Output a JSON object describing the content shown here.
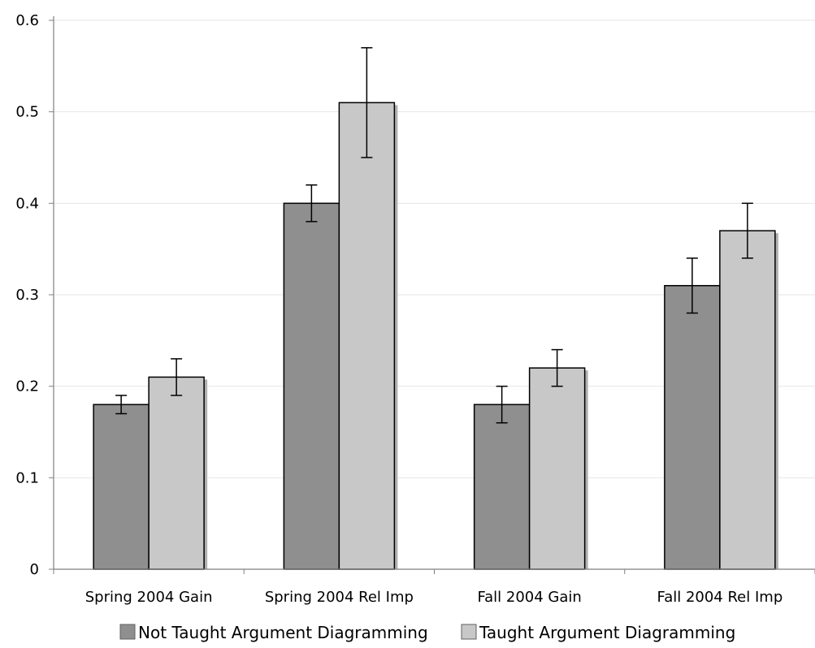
{
  "chart_data": {
    "type": "bar",
    "title": "",
    "xlabel": "",
    "ylabel": "",
    "categories": [
      "Spring 2004 Gain",
      "Spring 2004 Rel Imp",
      "Fall 2004 Gain",
      "Fall 2004 Rel Imp"
    ],
    "series": [
      {
        "name": "Not Taught Argument Diagramming",
        "values": [
          0.18,
          0.4,
          0.18,
          0.31
        ],
        "error_low": [
          0.17,
          0.38,
          0.16,
          0.28
        ],
        "error_high": [
          0.19,
          0.42,
          0.2,
          0.34
        ],
        "color": "#8f8f8f"
      },
      {
        "name": "Taught Argument Diagramming",
        "values": [
          0.21,
          0.51,
          0.22,
          0.37
        ],
        "error_low": [
          0.19,
          0.45,
          0.2,
          0.34
        ],
        "error_high": [
          0.23,
          0.57,
          0.24,
          0.4
        ],
        "color": "#c8c8c8"
      }
    ],
    "ylim": [
      0,
      0.6
    ],
    "yticks": [
      "0",
      "0.1",
      "0.2",
      "0.3",
      "0.4",
      "0.5",
      "0.6"
    ],
    "grid": true,
    "legend_position": "bottom-center",
    "bar_shadow": "#b0b0b0",
    "grid_color": "#e6e6e6",
    "axis_color": "#808080"
  }
}
